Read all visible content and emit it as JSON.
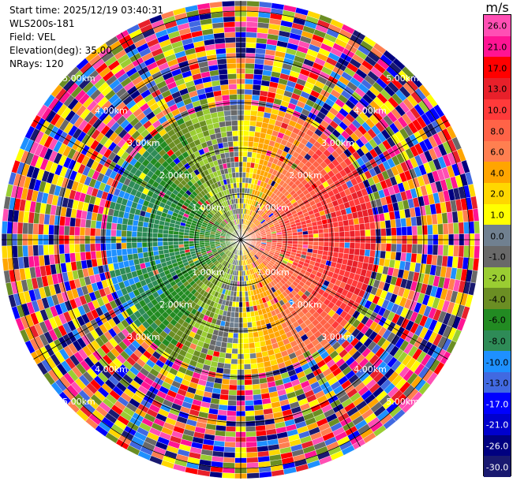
{
  "header": {
    "start_time": "Start time: 2025/12/19 03:40:31",
    "instrument": "WLS200s-181",
    "field": "Field: VEL",
    "elevation": "Elevation(deg): 35.00",
    "nrays": "NRays: 120"
  },
  "colorbar": {
    "unit": "m/s",
    "ticks": [
      "26.0",
      "21.0",
      "17.0",
      "13.0",
      "10.0",
      "8.0",
      "6.0",
      "4.0",
      "2.0",
      "1.0",
      "0.0",
      "-1.0",
      "-2.0",
      "-4.0",
      "-6.0",
      "-8.0",
      "-10.0",
      "-13.0",
      "-17.0",
      "-21.0",
      "-26.0",
      "-30.0"
    ],
    "colors": [
      "#ff4fb4",
      "#ff1493",
      "#ff0000",
      "#e8202a",
      "#ff3a3a",
      "#ff6347",
      "#ff7f50",
      "#ffa500",
      "#ffd700",
      "#ffff00",
      "#708090",
      "#696969",
      "#9acd32",
      "#6b8e23",
      "#228b22",
      "#2e8b57",
      "#1e90ff",
      "#4169e1",
      "#0000ff",
      "#0000cd",
      "#000080",
      "#191970"
    ]
  },
  "chart_data": {
    "type": "heatmap",
    "projection": "polar PPI (plan position indicator)",
    "field": "VEL",
    "units": "m/s",
    "n_rays": 120,
    "elevation_deg": 35.0,
    "range_rings_km": [
      1.0,
      2.0,
      3.0,
      4.0,
      5.0
    ],
    "ring_labels": [
      "1.00km",
      "2.00km",
      "3.00km",
      "4.00km",
      "5.00km"
    ],
    "value_range": [
      -30,
      26
    ],
    "inner_pattern": "approaching (negative, blue/green) to the west, receding (positive, red/yellow) to the east, within about 3 km",
    "outer_pattern": "noise (random colours) beyond about 3 km"
  }
}
